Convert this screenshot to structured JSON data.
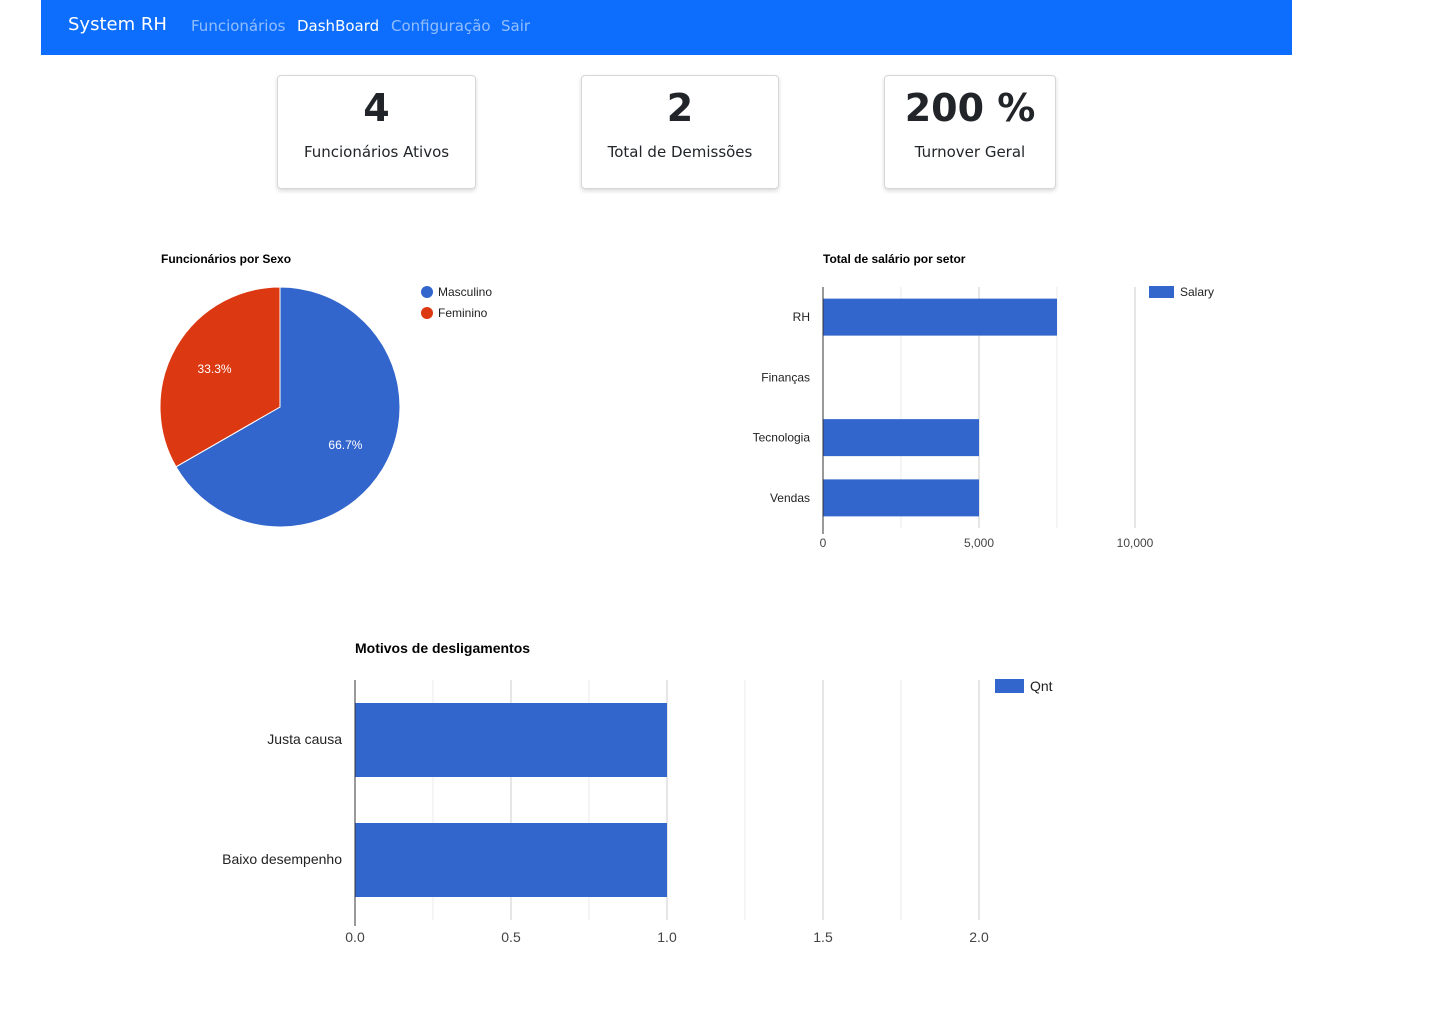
{
  "navbar": {
    "brand": "System RH",
    "links": [
      {
        "label": "Funcionários",
        "active": false
      },
      {
        "label": "DashBoard",
        "active": true
      },
      {
        "label": "Configuração",
        "active": false
      },
      {
        "label": "Sair",
        "active": false
      }
    ],
    "color": "#0d6efd"
  },
  "cards": [
    {
      "value": "4",
      "label": "Funcionários Ativos"
    },
    {
      "value": "2",
      "label": "Total de Demissões"
    },
    {
      "value": "200 %",
      "label": "Turnover Geral"
    }
  ],
  "chart_data": [
    {
      "type": "pie",
      "title": "Funcionários por Sexo",
      "categories": [
        "Masculino",
        "Feminino"
      ],
      "values": [
        66.7,
        33.3
      ],
      "labels": [
        "66.7%",
        "33.3%"
      ],
      "colors": [
        "#3366cc",
        "#dc3912"
      ],
      "legend": "right"
    },
    {
      "type": "bar",
      "orientation": "horizontal",
      "title": "Total de salário por setor",
      "categories": [
        "RH",
        "Finanças",
        "Tecnologia",
        "Vendas"
      ],
      "series": [
        {
          "name": "Salary",
          "values": [
            7500,
            0,
            5000,
            5000
          ]
        }
      ],
      "xlim": [
        0,
        10000
      ],
      "xticks": [
        "0",
        "5,000",
        "10,000"
      ],
      "color": "#3366cc",
      "grid": true,
      "legend": "right"
    },
    {
      "type": "bar",
      "orientation": "horizontal",
      "title": "Motivos de desligamentos",
      "categories": [
        "Justa causa",
        "Baixo desempenho"
      ],
      "series": [
        {
          "name": "Qnt",
          "values": [
            1,
            1
          ]
        }
      ],
      "xlim": [
        0,
        2
      ],
      "xticks": [
        "0.0",
        "0.5",
        "1.0",
        "1.5",
        "2.0"
      ],
      "color": "#3366cc",
      "grid": true,
      "legend": "right"
    }
  ]
}
